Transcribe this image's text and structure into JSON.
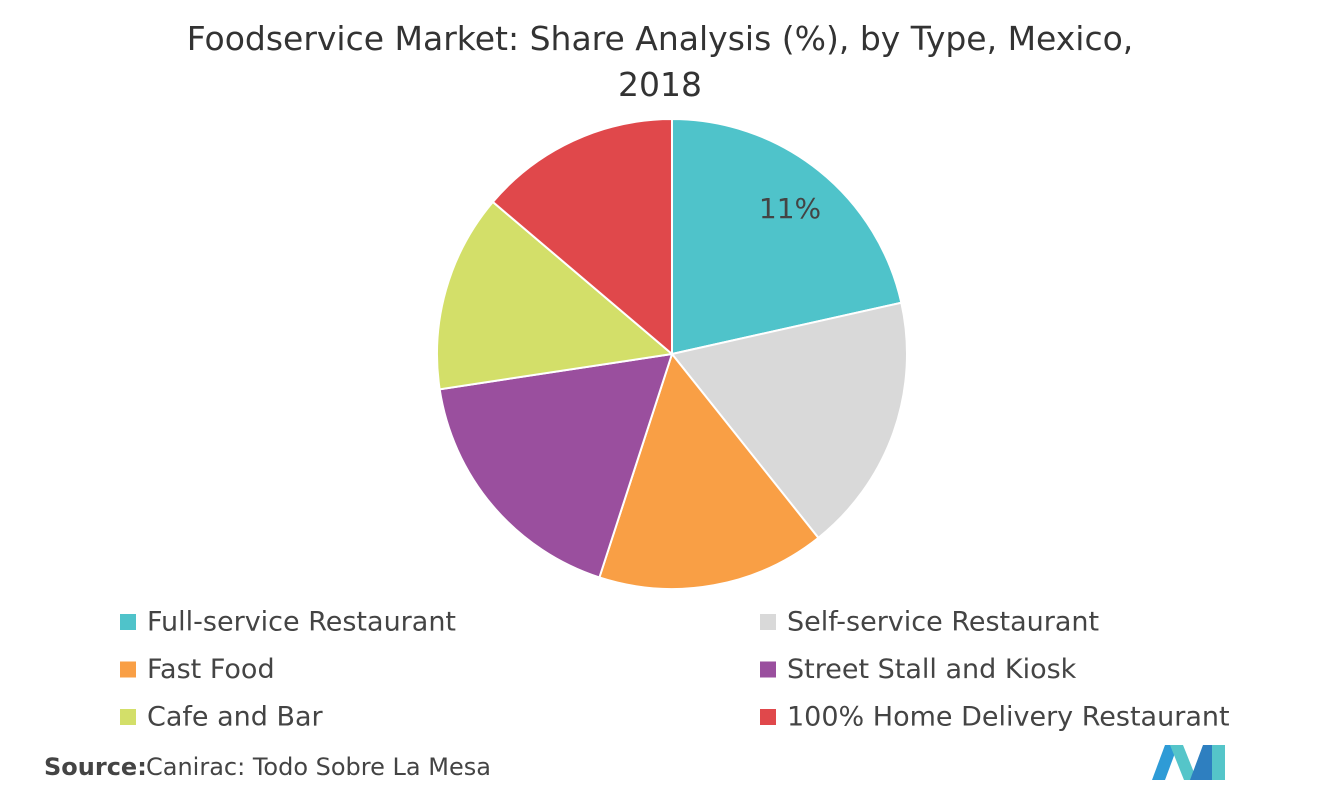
{
  "chart_data": {
    "type": "pie",
    "title": "Foodservice Market: Share Analysis (%), by Type, Mexico, 2018",
    "categories": [
      "Full-service Restaurant",
      "Self-service Restaurant",
      "Fast Food",
      "Street Stall and Kiosk",
      "Cafe and Bar",
      "100% Home Delivery Restaurant"
    ],
    "values": [
      21.5,
      17.8,
      15.7,
      17.6,
      13.6,
      13.8
    ],
    "colors": [
      "#4fc3ca",
      "#d9d9d9",
      "#f99f45",
      "#9a4f9e",
      "#d3df69",
      "#e0484b"
    ],
    "annotation": "11%",
    "legend": "bottom",
    "source": {
      "label": "Source:",
      "text": "Canirac: Todo Sobre La Mesa"
    }
  }
}
